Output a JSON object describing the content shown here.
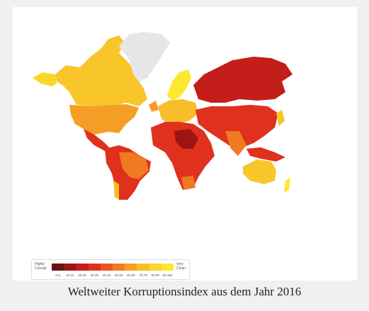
{
  "caption": "Weltweiter Korruptionsindex aus dem Jahr 2016",
  "legend": {
    "low_label": "Highly Corrupt",
    "high_label": "Very Clean",
    "items": [
      {
        "label": "0-9",
        "color": "#6b0f0f"
      },
      {
        "label": "10-19",
        "color": "#9c1414"
      },
      {
        "label": "20-29",
        "color": "#c41e1a"
      },
      {
        "label": "30-39",
        "color": "#e0301e"
      },
      {
        "label": "40-49",
        "color": "#ea5520"
      },
      {
        "label": "50-59",
        "color": "#f07a22"
      },
      {
        "label": "60-69",
        "color": "#f59e25"
      },
      {
        "label": "70-79",
        "color": "#f8bd28"
      },
      {
        "label": "80-89",
        "color": "#fad52c"
      },
      {
        "label": "90-100",
        "color": "#fce92f"
      }
    ]
  }
}
